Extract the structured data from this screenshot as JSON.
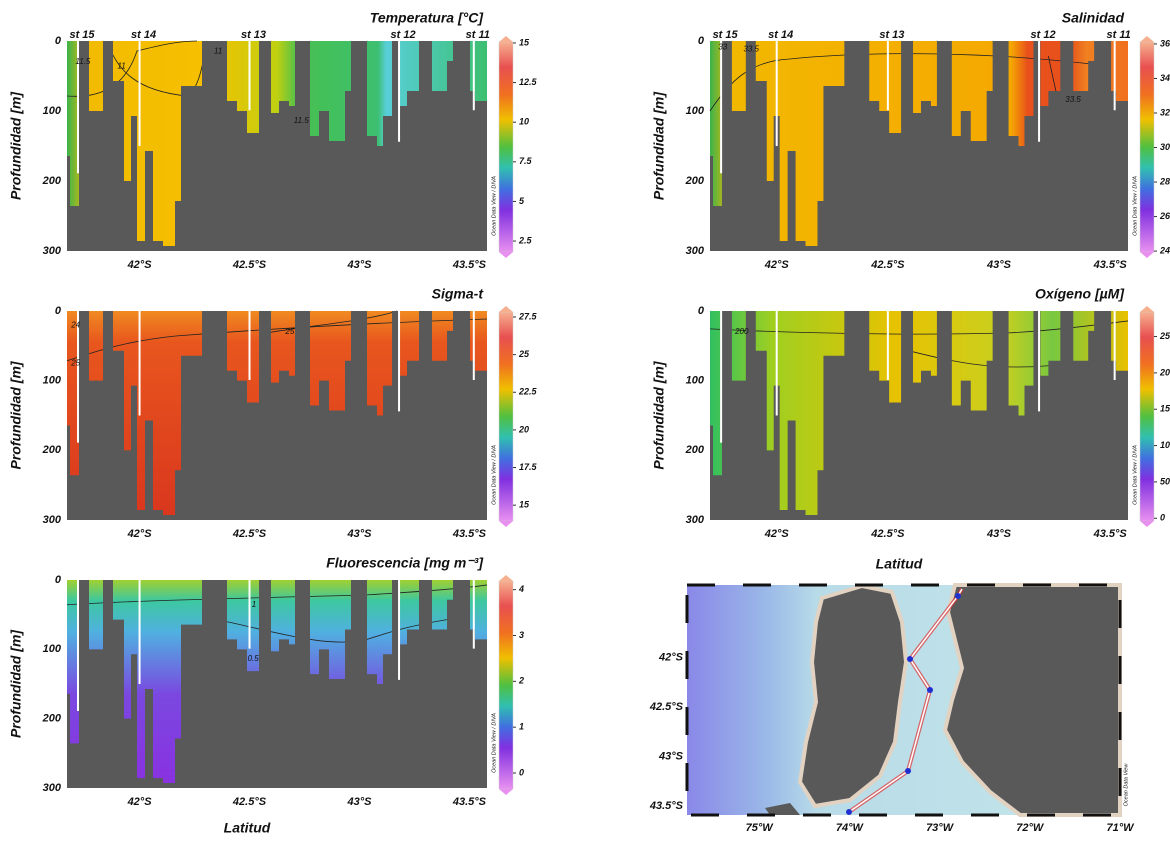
{
  "chart_data": [
    {
      "type": "contour",
      "title": "Temperatura [°C]",
      "ylabel": "Profundidad [m]",
      "xlim": [
        41.67,
        43.58
      ],
      "ylim": [
        0,
        300
      ],
      "xticks": [
        {
          "value": 42,
          "label": "42°S"
        },
        {
          "value": 42.5,
          "label": "42.5°S"
        },
        {
          "value": 43,
          "label": "43°S"
        },
        {
          "value": 43.5,
          "label": "43.5°S"
        }
      ],
      "yticks": [
        0,
        100,
        200,
        300
      ],
      "stations": [
        {
          "name": "st 15",
          "lat": 41.72
        },
        {
          "name": "st 14",
          "lat": 42.0
        },
        {
          "name": "st 13",
          "lat": 42.5
        },
        {
          "name": "st 12",
          "lat": 43.18
        },
        {
          "name": "st 11",
          "lat": 43.52
        }
      ],
      "colorbar": {
        "clim": [
          1.43,
          15.44
        ],
        "ticks": [
          2.5,
          5,
          7.5,
          10,
          12.5,
          15
        ],
        "credit": "Ocean Data View / DIVA"
      },
      "contour_labels": [
        "11.5",
        "11",
        "11.5",
        "11"
      ]
    },
    {
      "type": "contour",
      "title": "Salinidad",
      "ylabel": "Profundidad [m]",
      "xlim": [
        41.7,
        43.58
      ],
      "ylim": [
        0,
        300
      ],
      "xticks": [
        {
          "value": 42,
          "label": "42°S"
        },
        {
          "value": 42.5,
          "label": "42.5°S"
        },
        {
          "value": 43,
          "label": "43°S"
        },
        {
          "value": 43.5,
          "label": "43.5°S"
        }
      ],
      "yticks": [
        0,
        100,
        200,
        300
      ],
      "stations": [
        {
          "name": "st 15",
          "lat": 41.75
        },
        {
          "name": "st 14",
          "lat": 42.0
        },
        {
          "name": "st 13",
          "lat": 42.5
        },
        {
          "name": "st 12",
          "lat": 43.18
        },
        {
          "name": "st 11",
          "lat": 43.52
        }
      ],
      "colorbar": {
        "clim": [
          23.6,
          36.46
        ],
        "ticks": [
          24,
          26,
          28,
          30,
          32,
          34,
          36
        ],
        "credit": "Ocean Data View / DIVA"
      },
      "contour_labels": [
        "33",
        "33.5",
        "33.5"
      ]
    },
    {
      "type": "contour",
      "title": "Sigma-t",
      "ylabel": "Profundidad [m]",
      "xlim": [
        41.67,
        43.58
      ],
      "ylim": [
        0,
        300
      ],
      "xticks": [
        {
          "value": 42,
          "label": "42°S"
        },
        {
          "value": 42.5,
          "label": "42.5°S"
        },
        {
          "value": 43,
          "label": "43°S"
        },
        {
          "value": 43.5,
          "label": "43.5°S"
        }
      ],
      "yticks": [
        0,
        100,
        200,
        300
      ],
      "colorbar": {
        "clim": [
          13.55,
          28.23
        ],
        "ticks": [
          15,
          17.5,
          20,
          22.5,
          25,
          27.5
        ],
        "credit": "Ocean Data View / DIVA"
      },
      "contour_labels": [
        "24",
        "25",
        "25"
      ]
    },
    {
      "type": "contour",
      "title": "Oxígeno [µM]",
      "ylabel": "Profundidad [m]",
      "xlabel": "Latitud",
      "xlim": [
        41.7,
        43.58
      ],
      "ylim": [
        0,
        300
      ],
      "xticks": [
        {
          "value": 42,
          "label": "42°S"
        },
        {
          "value": 42.5,
          "label": "42.5°S"
        },
        {
          "value": 43,
          "label": "43°S"
        },
        {
          "value": 43.5,
          "label": "43.5°S"
        }
      ],
      "yticks": [
        0,
        100,
        200,
        300
      ],
      "colorbar": {
        "clim": [
          -12,
          292
        ],
        "ticks": [
          0,
          50,
          100,
          150,
          200,
          250
        ],
        "credit": "Ocean Data View / DIVA"
      },
      "contour_labels": [
        "200"
      ]
    },
    {
      "type": "contour",
      "title": "Fluorescencia [mg m⁻³]",
      "ylabel": "Profundidad [m]",
      "xlabel": "Latitud",
      "xlim": [
        41.67,
        43.58
      ],
      "ylim": [
        0,
        300
      ],
      "xticks": [
        {
          "value": 42,
          "label": "42°S"
        },
        {
          "value": 42.5,
          "label": "42.5°S"
        },
        {
          "value": 43,
          "label": "43°S"
        },
        {
          "value": 43.5,
          "label": "43.5°S"
        }
      ],
      "yticks": [
        0,
        100,
        200,
        300
      ],
      "colorbar": {
        "clim": [
          -0.48,
          4.32
        ],
        "ticks": [
          0,
          1,
          2,
          3,
          4
        ],
        "credit": "Ocean Data View / DIVA"
      },
      "contour_labels": [
        "1",
        "0.5"
      ]
    },
    {
      "type": "map",
      "xlim": [
        75.8,
        71.0
      ],
      "ylim": [
        41.27,
        43.59
      ],
      "xticks": [
        {
          "value": 75,
          "label": "75°W"
        },
        {
          "value": 74,
          "label": "74°W"
        },
        {
          "value": 73,
          "label": "73°W"
        },
        {
          "value": 72,
          "label": "72°W"
        },
        {
          "value": 71,
          "label": "71°W"
        }
      ],
      "yticks": [
        {
          "value": 42,
          "label": "42°S"
        },
        {
          "value": 42.5,
          "label": "42.5°S"
        },
        {
          "value": 43,
          "label": "43°S"
        },
        {
          "value": 43.5,
          "label": "43.5°S"
        }
      ],
      "credit": "Ocean Data View"
    }
  ]
}
